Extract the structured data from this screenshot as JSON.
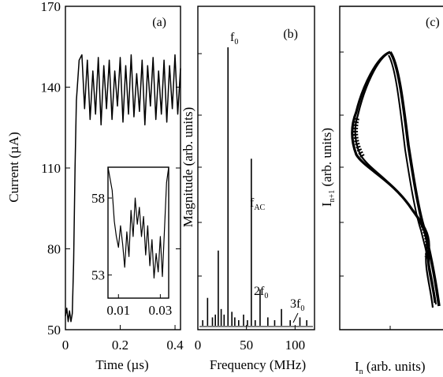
{
  "chart_data": [
    {
      "panel": "(a)",
      "type": "line",
      "xlabel": "Time (µs)",
      "ylabel": "Current (µA)",
      "xlim": [
        0,
        0.42
      ],
      "ylim": [
        50,
        170
      ],
      "xticks": [
        "0",
        "0.2",
        "0.4"
      ],
      "yticks": [
        "50",
        "80",
        "110",
        "140",
        "170"
      ],
      "series": [
        {
          "x": [
            0.0,
            0.005,
            0.01,
            0.015,
            0.02,
            0.025,
            0.03,
            0.035,
            0.04,
            0.05,
            0.06,
            0.07,
            0.08,
            0.09,
            0.1,
            0.11,
            0.12,
            0.13,
            0.14,
            0.15,
            0.16,
            0.17,
            0.18,
            0.19,
            0.2,
            0.21,
            0.22,
            0.23,
            0.24,
            0.25,
            0.26,
            0.27,
            0.28,
            0.29,
            0.3,
            0.31,
            0.32,
            0.33,
            0.34,
            0.35,
            0.36,
            0.37,
            0.38,
            0.39,
            0.4,
            0.41,
            0.42
          ],
          "y": [
            55,
            58,
            53,
            57,
            53,
            56,
            75,
            110,
            135,
            150,
            152,
            132,
            150,
            128,
            146,
            130,
            151,
            126,
            148,
            132,
            150,
            128,
            146,
            133,
            151,
            127,
            148,
            130,
            152,
            129,
            145,
            131,
            150,
            126,
            148,
            133,
            151,
            128,
            146,
            130,
            150,
            127,
            148,
            132,
            152,
            130,
            147
          ]
        }
      ]
    },
    {
      "panel": "inset",
      "type": "line",
      "xlim": [
        0.005,
        0.034
      ],
      "ylim": [
        51.5,
        60
      ],
      "xticks": [
        "0.01",
        "0.03"
      ],
      "yticks": [
        "53",
        "58"
      ],
      "series": [
        {
          "x": [
            0.005,
            0.007,
            0.008,
            0.009,
            0.01,
            0.011,
            0.012,
            0.013,
            0.014,
            0.015,
            0.016,
            0.017,
            0.018,
            0.019,
            0.02,
            0.021,
            0.022,
            0.023,
            0.024,
            0.025,
            0.026,
            0.027,
            0.028,
            0.029,
            0.03,
            0.031,
            0.032,
            0.033,
            0.034
          ],
          "y": [
            60,
            58.5,
            56.5,
            55.5,
            54.8,
            56.2,
            55,
            53.5,
            55.8,
            54.2,
            57.2,
            55.5,
            58,
            56.3,
            57.4,
            55.5,
            56.8,
            54.3,
            56.2,
            53.6,
            55.3,
            52.8,
            54.4,
            53.2,
            55.5,
            52.9,
            56,
            59,
            60
          ]
        }
      ]
    },
    {
      "panel": "(b)",
      "type": "bar",
      "xlabel": "Frequency (MHz)",
      "ylabel": "Magnitude (arb. units)",
      "xlim": [
        0,
        120
      ],
      "ylim": [
        0,
        1
      ],
      "xticks": [
        "0",
        "50",
        "100"
      ],
      "x": [
        5,
        10,
        15,
        18,
        21,
        24,
        27,
        31,
        35,
        38,
        42,
        47,
        51,
        55,
        59,
        64,
        72,
        79,
        86,
        95,
        105,
        112
      ],
      "values": [
        0.02,
        0.1,
        0.03,
        0.04,
        0.27,
        0.06,
        0.04,
        1.0,
        0.05,
        0.03,
        0.02,
        0.04,
        0.02,
        0.6,
        0.02,
        0.13,
        0.03,
        0.02,
        0.06,
        0.02,
        0.03,
        0.02
      ],
      "annotations": [
        "f",
        "f",
        "2f",
        "3f"
      ],
      "annotation_subscripts": [
        "0",
        "AC",
        "0",
        "0"
      ]
    },
    {
      "panel": "(c)",
      "type": "scatter",
      "xlabel": "I",
      "xlabel_sub": "n",
      "xlabel_rest": " (arb. units)",
      "ylabel": "I",
      "ylabel_sub": "n+1",
      "ylabel_rest": " (arb. units)"
    }
  ]
}
